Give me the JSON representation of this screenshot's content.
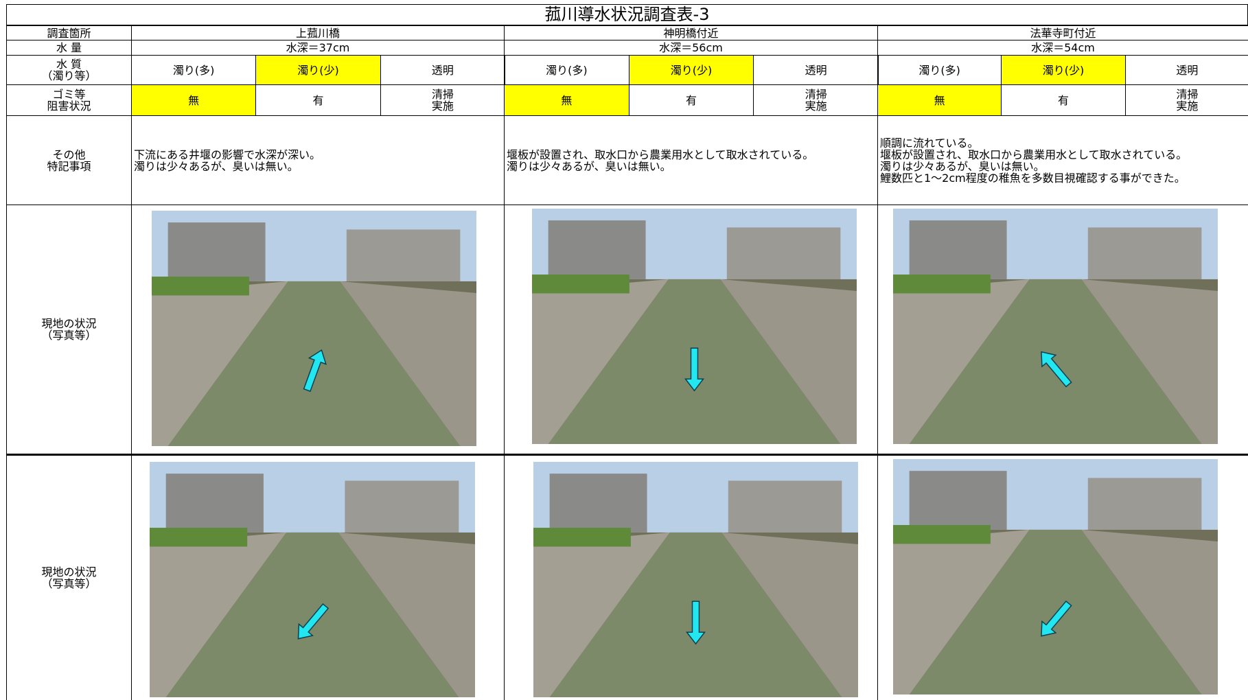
{
  "header": {
    "title": "菰川導水状況調査表-3"
  },
  "table": {
    "labels": {
      "location": [
        "調査箇所"
      ],
      "volume": [
        "水 量"
      ],
      "quality": [
        "水 質",
        "（濁り等）"
      ],
      "trash": [
        "ゴミ等",
        "阻害状況"
      ],
      "notes": [
        "その他",
        "特記事項"
      ],
      "photo1": [
        "現地の状況",
        "（写真等）"
      ],
      "photo2": [
        "現地の状況",
        "（写真等）"
      ]
    },
    "highlight_color": "#ffff00",
    "quality_options": [
      "濁り(多)",
      "濁り(少)",
      "透明"
    ],
    "trash_options": [
      [
        "無"
      ],
      [
        "有"
      ],
      [
        "清掃",
        "実施"
      ]
    ],
    "locations": [
      {
        "name": "上菰川橋",
        "depth": "水深＝37cm",
        "quality_selected": 1,
        "trash_selected": 0,
        "notes": [
          "下流にある井堰の影響で水深が深い。",
          "濁りは少々あるが、臭いは無い。"
        ]
      },
      {
        "name": "神明橋付近",
        "depth": "水深＝56cm",
        "quality_selected": 1,
        "trash_selected": 0,
        "notes": [
          "堰板が設置され、取水口から農業用水として取水されている。",
          "濁りは少々あるが、臭いは無い。"
        ]
      },
      {
        "name": "法華寺町付近",
        "depth": "水深＝54cm",
        "quality_selected": 1,
        "trash_selected": 0,
        "notes": [
          "順調に流れている。",
          "堰板が設置され、取水口から農業用水として取水されている。",
          "濁りは少々あるが、臭いは無い。",
          "鯉数匹と1～2cm程度の稚魚を多数目視確認する事ができた。"
        ]
      }
    ]
  }
}
